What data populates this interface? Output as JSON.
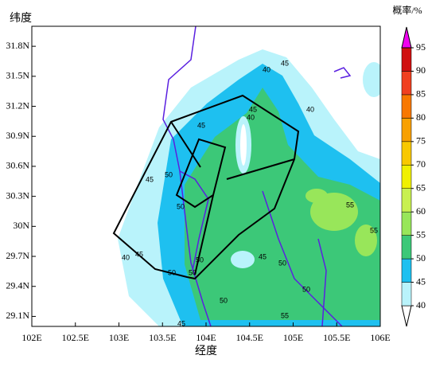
{
  "map": {
    "y_axis_label": "纬度",
    "x_axis_label": "经度",
    "xlim": [
      102,
      106
    ],
    "ylim": [
      29.0,
      32.0
    ],
    "xticks": [
      {
        "value": 102,
        "label": "102E"
      },
      {
        "value": 102.5,
        "label": "102.5E"
      },
      {
        "value": 103,
        "label": "103E"
      },
      {
        "value": 103.5,
        "label": "103.5E"
      },
      {
        "value": 104,
        "label": "104E"
      },
      {
        "value": 104.5,
        "label": "104.5E"
      },
      {
        "value": 105,
        "label": "105E"
      },
      {
        "value": 105.5,
        "label": "105.5E"
      },
      {
        "value": 106,
        "label": "106E"
      }
    ],
    "yticks": [
      {
        "value": 29.1,
        "label": "29.1N"
      },
      {
        "value": 29.4,
        "label": "29.4N"
      },
      {
        "value": 29.7,
        "label": "29.7N"
      },
      {
        "value": 30,
        "label": "30N"
      },
      {
        "value": 30.3,
        "label": "30.3N"
      },
      {
        "value": 30.6,
        "label": "30.6N"
      },
      {
        "value": 30.9,
        "label": "30.9N"
      },
      {
        "value": 31.2,
        "label": "31.2N"
      },
      {
        "value": 31.5,
        "label": "31.5N"
      },
      {
        "value": 31.8,
        "label": "31.8N"
      }
    ],
    "colorbar": {
      "title": "概率/%",
      "levels": [
        40,
        45,
        50,
        55,
        60,
        65,
        70,
        75,
        80,
        85,
        90,
        95
      ],
      "colors": [
        "#ffffff",
        "#b9f3fb",
        "#1ec0f0",
        "#3cc878",
        "#98e65a",
        "#c8f050",
        "#f0f000",
        "#f8c800",
        "#f8a000",
        "#f87800",
        "#f04020",
        "#d01010",
        "#f000f0"
      ]
    },
    "contour_labels": [
      45,
      40,
      45,
      40,
      40,
      45,
      50,
      45,
      50,
      55,
      55,
      45,
      40,
      50,
      45,
      50,
      50,
      50,
      50,
      50,
      55,
      45
    ]
  }
}
